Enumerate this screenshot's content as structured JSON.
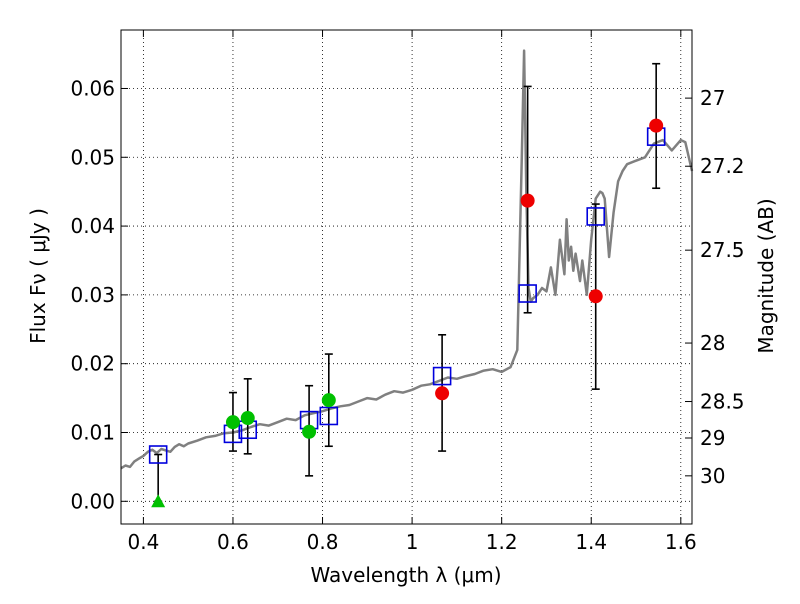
{
  "chart_data": {
    "type": "scatter",
    "xlabel": "Wavelength  λ (μm)",
    "ylabel": "Flux  Fν  ( μJy )",
    "y2label": "Magnitude (AB)",
    "xlim": [
      0.35,
      1.625
    ],
    "ylim": [
      -0.0033,
      0.0685
    ],
    "x_ticks": [
      0.4,
      0.6,
      0.8,
      1.0,
      1.2,
      1.4,
      1.6
    ],
    "x_tick_labels": [
      "0.4",
      "0.6",
      "0.8",
      "1",
      "1.2",
      "1.4",
      "1.6"
    ],
    "y_ticks": [
      0.0,
      0.01,
      0.02,
      0.03,
      0.04,
      0.05,
      0.06
    ],
    "y_tick_labels": [
      "0.00",
      "0.01",
      "0.02",
      "0.03",
      "0.04",
      "0.05",
      "0.06"
    ],
    "y2_ticks": [
      {
        "flux": 0.0586,
        "label": "27"
      },
      {
        "flux": 0.0487,
        "label": "27.2"
      },
      {
        "flux": 0.0365,
        "label": "27.5"
      },
      {
        "flux": 0.023,
        "label": "28"
      },
      {
        "flux": 0.0145,
        "label": "28.5"
      },
      {
        "flux": 0.0092,
        "label": "29"
      },
      {
        "flux": 0.0037,
        "label": "30"
      }
    ],
    "grid": true,
    "colors": {
      "model": "#808080",
      "green": "#00c000",
      "red": "#ee0000",
      "box": "#0000dd",
      "err": "#000000"
    },
    "model_spectrum": {
      "x": [
        0.35,
        0.36,
        0.37,
        0.38,
        0.39,
        0.4,
        0.41,
        0.42,
        0.43,
        0.44,
        0.45,
        0.46,
        0.47,
        0.48,
        0.49,
        0.5,
        0.52,
        0.54,
        0.56,
        0.58,
        0.6,
        0.62,
        0.64,
        0.66,
        0.68,
        0.7,
        0.72,
        0.74,
        0.76,
        0.78,
        0.8,
        0.82,
        0.84,
        0.86,
        0.88,
        0.9,
        0.92,
        0.94,
        0.96,
        0.98,
        1.0,
        1.02,
        1.04,
        1.06,
        1.08,
        1.1,
        1.12,
        1.14,
        1.16,
        1.18,
        1.2,
        1.22,
        1.235,
        1.245,
        1.25,
        1.255,
        1.26,
        1.265,
        1.27,
        1.28,
        1.29,
        1.3,
        1.31,
        1.32,
        1.33,
        1.34,
        1.345,
        1.35,
        1.355,
        1.36,
        1.365,
        1.37,
        1.375,
        1.38,
        1.39,
        1.4,
        1.41,
        1.42,
        1.425,
        1.43,
        1.44,
        1.45,
        1.46,
        1.47,
        1.48,
        1.5,
        1.52,
        1.54,
        1.56,
        1.58,
        1.6,
        1.61,
        1.625
      ],
      "y": [
        0.0048,
        0.0052,
        0.005,
        0.0058,
        0.0062,
        0.0066,
        0.0072,
        0.0075,
        0.007,
        0.0076,
        0.0074,
        0.0072,
        0.0079,
        0.0083,
        0.008,
        0.0084,
        0.0088,
        0.0093,
        0.0095,
        0.0099,
        0.01,
        0.0103,
        0.0108,
        0.0112,
        0.011,
        0.0115,
        0.012,
        0.0118,
        0.0125,
        0.0128,
        0.0131,
        0.0135,
        0.0138,
        0.014,
        0.0145,
        0.015,
        0.0148,
        0.0155,
        0.016,
        0.0158,
        0.0162,
        0.0168,
        0.017,
        0.0175,
        0.018,
        0.0178,
        0.0182,
        0.0185,
        0.019,
        0.0192,
        0.0188,
        0.0195,
        0.022,
        0.05,
        0.0655,
        0.045,
        0.031,
        0.029,
        0.0295,
        0.03,
        0.031,
        0.0305,
        0.034,
        0.03,
        0.038,
        0.033,
        0.041,
        0.035,
        0.037,
        0.0335,
        0.036,
        0.034,
        0.032,
        0.035,
        0.03,
        0.038,
        0.044,
        0.045,
        0.0448,
        0.044,
        0.0355,
        0.042,
        0.0465,
        0.048,
        0.049,
        0.0495,
        0.05,
        0.052,
        0.0525,
        0.051,
        0.0525,
        0.0522,
        0.048
      ]
    },
    "observations_green": [
      {
        "x": 0.6,
        "y": 0.0115,
        "err_low": 0.0073,
        "err_high": 0.0158
      },
      {
        "x": 0.633,
        "y": 0.0121,
        "err_low": 0.0069,
        "err_high": 0.0178
      },
      {
        "x": 0.77,
        "y": 0.0101,
        "err_low": 0.0037,
        "err_high": 0.0168
      },
      {
        "x": 0.814,
        "y": 0.0147,
        "err_low": 0.008,
        "err_high": 0.0214
      }
    ],
    "observations_green_upper_limit": [
      {
        "x": 0.433,
        "y": 0.0,
        "err_low": 0.0,
        "err_high": 0.0068
      }
    ],
    "observations_red": [
      {
        "x": 1.067,
        "y": 0.0157,
        "err_low": 0.0073,
        "err_high": 0.0242
      },
      {
        "x": 1.258,
        "y": 0.0437,
        "err_low": 0.0274,
        "err_high": 0.0603
      },
      {
        "x": 1.41,
        "y": 0.0298,
        "err_low": 0.0163,
        "err_high": 0.0432
      },
      {
        "x": 1.545,
        "y": 0.0546,
        "err_low": 0.0455,
        "err_high": 0.0636
      }
    ],
    "model_bandpass": [
      {
        "x": 0.433,
        "y": 0.0068
      },
      {
        "x": 0.6,
        "y": 0.0098
      },
      {
        "x": 0.633,
        "y": 0.0104
      },
      {
        "x": 0.77,
        "y": 0.0118
      },
      {
        "x": 0.814,
        "y": 0.0124
      },
      {
        "x": 1.067,
        "y": 0.0182
      },
      {
        "x": 1.258,
        "y": 0.0302
      },
      {
        "x": 1.41,
        "y": 0.0414
      },
      {
        "x": 1.545,
        "y": 0.053
      }
    ]
  }
}
